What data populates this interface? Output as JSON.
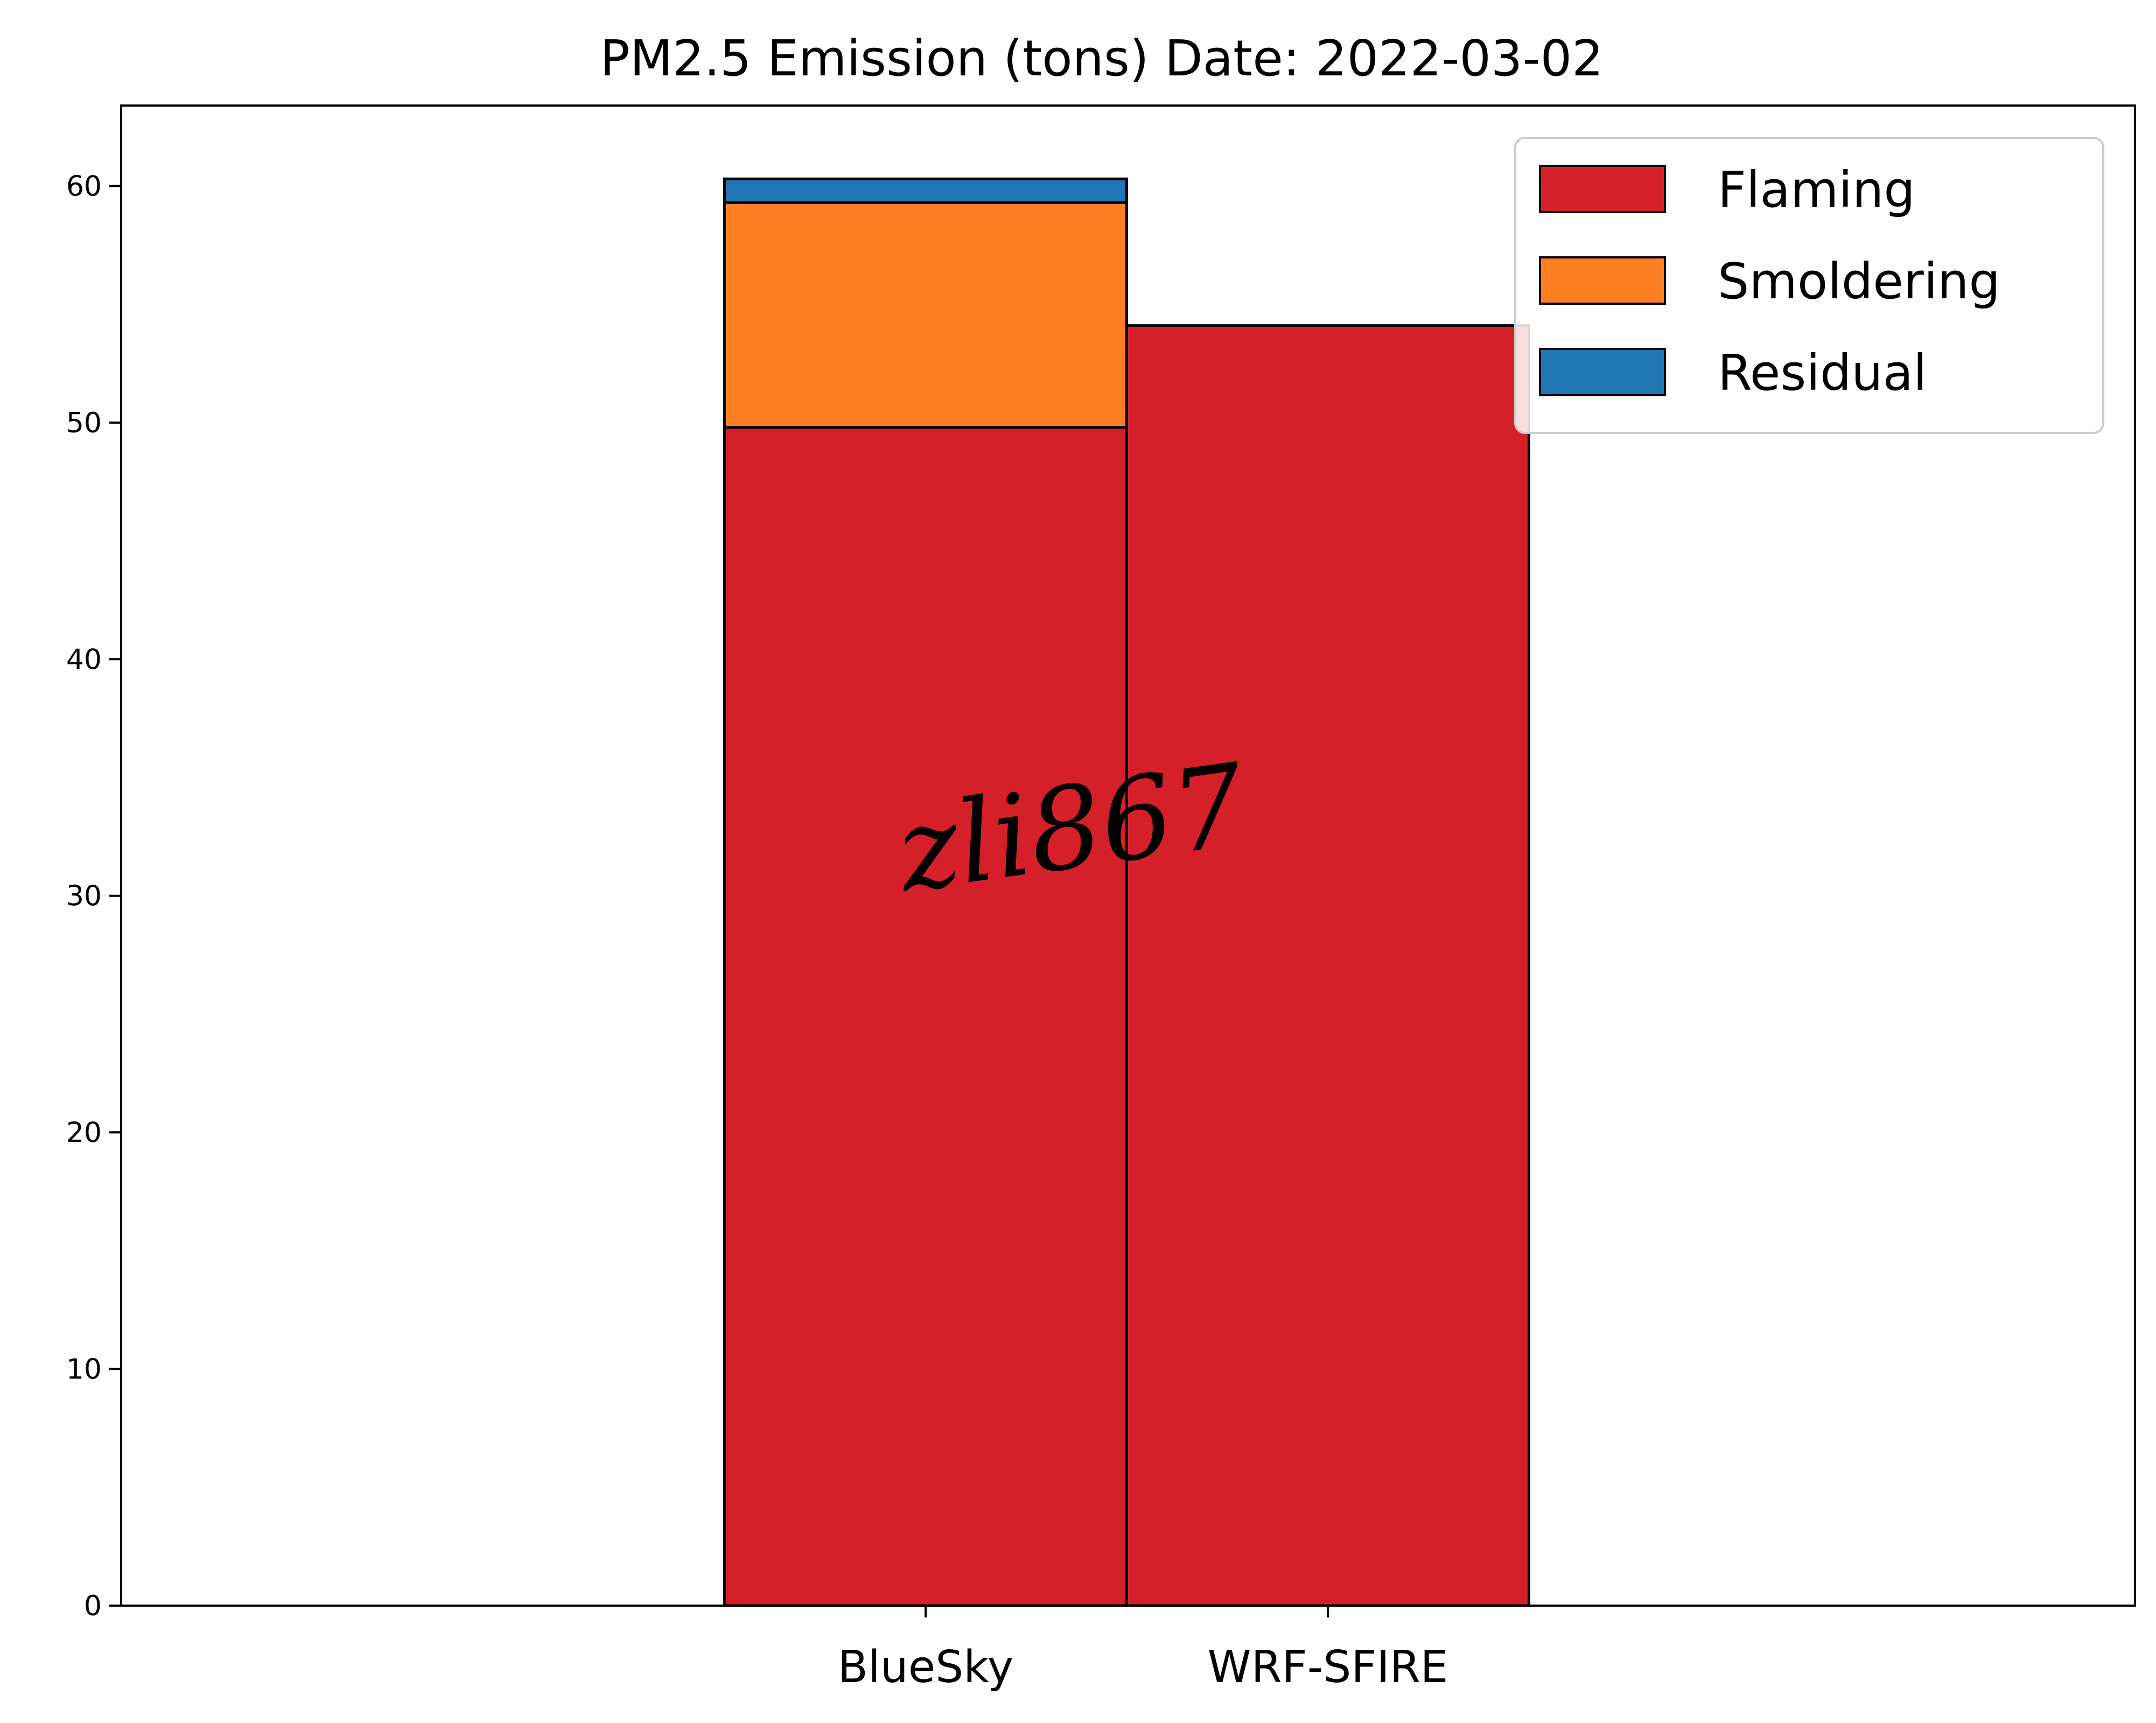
{
  "chart_data": {
    "type": "bar",
    "stacked": true,
    "title": "PM2.5 Emission (tons) Date: 2022-03-02",
    "xlabel": "",
    "ylabel": "",
    "categories": [
      "BlueSky",
      "WRF-SFIRE"
    ],
    "series": [
      {
        "name": "Flaming",
        "color": "#d62029",
        "values": [
          49.8,
          54.1
        ]
      },
      {
        "name": "Smoldering",
        "color": "#ff7f22",
        "values": [
          9.5,
          0
        ]
      },
      {
        "name": "Residual",
        "color": "#1f77b4",
        "values": [
          1.0,
          0
        ]
      }
    ],
    "ylim": [
      0,
      63.4
    ],
    "yticks": [
      0,
      10,
      20,
      30,
      40,
      50,
      60
    ],
    "grid": false,
    "legend": "top-right",
    "watermark": "zli867"
  }
}
